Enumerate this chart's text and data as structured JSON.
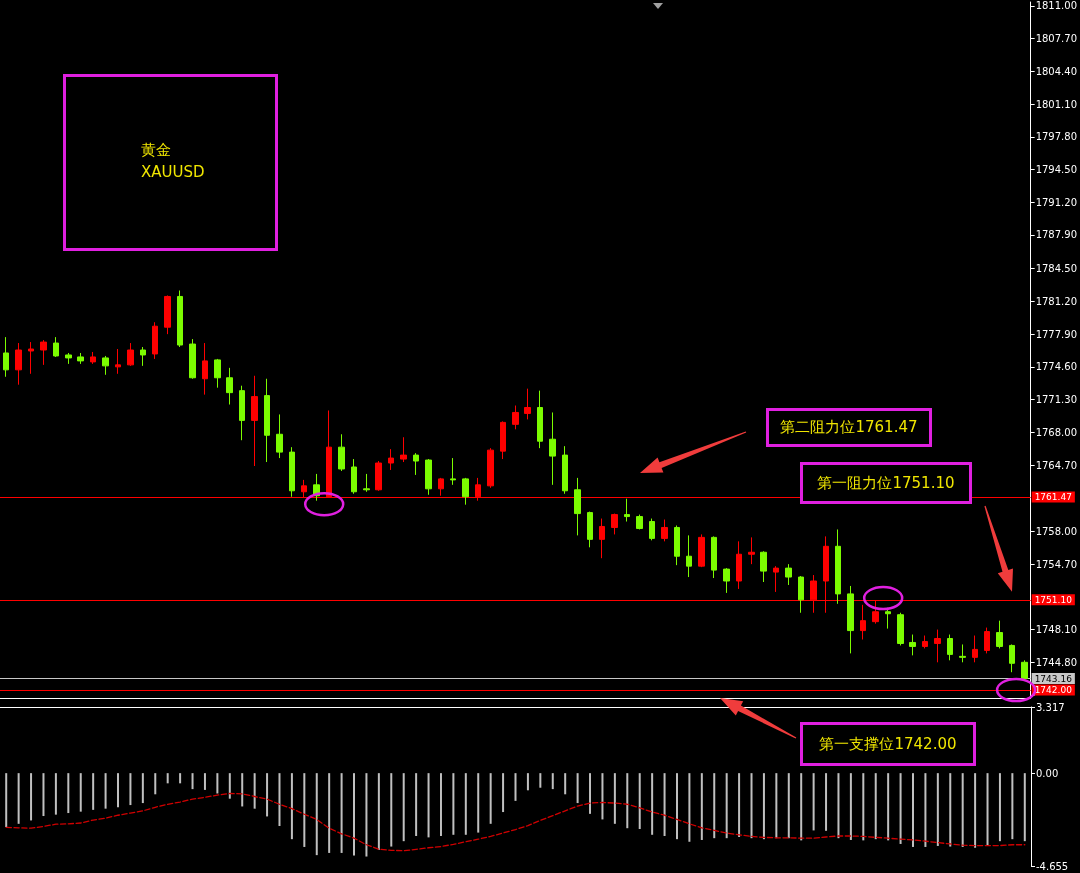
{
  "chart_data": [
    {
      "type": "candlestick",
      "categories": [
        null,
        null,
        null,
        null,
        null,
        null,
        null,
        null,
        null,
        null,
        null,
        null,
        null,
        null,
        null,
        null,
        null,
        null,
        null,
        null,
        null,
        null,
        null,
        null,
        null,
        null,
        null,
        null,
        null,
        null,
        null,
        null,
        null,
        null,
        null,
        null,
        null,
        null,
        null,
        null,
        null,
        null,
        null,
        null,
        null,
        null,
        null,
        null,
        null,
        null,
        null,
        null,
        null,
        null,
        null,
        null,
        null,
        null,
        null,
        null,
        null,
        null,
        null,
        null,
        null,
        null,
        null,
        null,
        null,
        null,
        null,
        null,
        null,
        null,
        null,
        null,
        null,
        null,
        null,
        null,
        null,
        null,
        null
      ],
      "ohlc": [
        [
          1776.0,
          1777.6,
          1773.6,
          1774.3
        ],
        [
          1774.3,
          1777.0,
          1772.8,
          1776.3
        ],
        [
          1776.2,
          1777.1,
          1773.9,
          1776.4
        ],
        [
          1776.3,
          1777.3,
          1774.8,
          1777.1
        ],
        [
          1777.0,
          1777.6,
          1775.6,
          1775.7
        ],
        [
          1775.8,
          1776.0,
          1774.9,
          1775.5
        ],
        [
          1775.6,
          1776.0,
          1774.9,
          1775.2
        ],
        [
          1775.1,
          1776.1,
          1774.9,
          1775.6
        ],
        [
          1775.5,
          1775.7,
          1773.8,
          1774.7
        ],
        [
          1774.6,
          1776.4,
          1773.9,
          1774.8
        ],
        [
          1774.8,
          1777.0,
          1774.7,
          1776.3
        ],
        [
          1776.3,
          1776.6,
          1774.7,
          1775.8
        ],
        [
          1775.9,
          1779.1,
          1775.4,
          1778.7
        ],
        [
          1778.6,
          1781.8,
          1777.9,
          1781.7
        ],
        [
          1781.7,
          1782.3,
          1776.6,
          1776.8
        ],
        [
          1776.9,
          1777.4,
          1773.4,
          1773.5
        ],
        [
          1773.4,
          1777.0,
          1771.8,
          1775.2
        ],
        [
          1775.3,
          1775.4,
          1772.5,
          1773.5
        ],
        [
          1773.5,
          1774.5,
          1770.8,
          1772.0
        ],
        [
          1772.2,
          1772.7,
          1767.2,
          1769.2
        ],
        [
          1769.2,
          1773.7,
          1764.6,
          1771.6
        ],
        [
          1771.7,
          1773.4,
          1765.0,
          1767.7
        ],
        [
          1767.8,
          1769.8,
          1765.4,
          1766.0
        ],
        [
          1766.0,
          1766.5,
          1761.5,
          1762.1
        ],
        [
          1762.0,
          1763.2,
          1761.4,
          1762.6
        ],
        [
          1762.7,
          1763.8,
          1761.1,
          1761.6
        ],
        [
          1761.5,
          1770.2,
          1761.5,
          1766.5
        ],
        [
          1766.5,
          1767.8,
          1764.1,
          1764.3
        ],
        [
          1764.5,
          1765.3,
          1761.8,
          1762.0
        ],
        [
          1762.3,
          1763.8,
          1762.0,
          1762.2
        ],
        [
          1762.2,
          1765.1,
          1762.1,
          1764.9
        ],
        [
          1764.9,
          1766.3,
          1764.2,
          1765.4
        ],
        [
          1765.3,
          1767.5,
          1765.0,
          1765.7
        ],
        [
          1765.7,
          1765.9,
          1763.7,
          1765.1
        ],
        [
          1765.2,
          1765.3,
          1761.7,
          1762.3
        ],
        [
          1762.3,
          1763.4,
          1761.6,
          1763.3
        ],
        [
          1763.3,
          1765.4,
          1762.7,
          1763.2
        ],
        [
          1763.3,
          1763.4,
          1760.7,
          1761.5
        ],
        [
          1761.5,
          1763.4,
          1761.1,
          1762.7
        ],
        [
          1762.6,
          1766.4,
          1762.4,
          1766.2
        ],
        [
          1766.1,
          1769.1,
          1765.3,
          1769.0
        ],
        [
          1768.8,
          1770.7,
          1768.3,
          1770.0
        ],
        [
          1769.9,
          1772.4,
          1769.3,
          1770.5
        ],
        [
          1770.5,
          1772.2,
          1766.4,
          1767.1
        ],
        [
          1767.3,
          1770.0,
          1762.7,
          1765.6
        ],
        [
          1765.7,
          1766.6,
          1761.8,
          1762.1
        ],
        [
          1762.2,
          1763.4,
          1757.6,
          1759.8
        ],
        [
          1759.9,
          1760.0,
          1756.4,
          1757.2
        ],
        [
          1757.2,
          1759.3,
          1755.3,
          1758.5
        ],
        [
          1758.4,
          1759.8,
          1757.7,
          1759.7
        ],
        [
          1759.7,
          1761.3,
          1759.0,
          1759.5
        ],
        [
          1759.5,
          1759.7,
          1758.2,
          1758.3
        ],
        [
          1759.0,
          1759.3,
          1757.1,
          1757.3
        ],
        [
          1757.3,
          1759.2,
          1757.0,
          1758.4
        ],
        [
          1758.4,
          1758.6,
          1754.6,
          1755.5
        ],
        [
          1755.5,
          1757.6,
          1753.4,
          1754.5
        ],
        [
          1754.5,
          1757.7,
          1754.4,
          1757.4
        ],
        [
          1757.4,
          1757.5,
          1753.3,
          1754.1
        ],
        [
          1754.2,
          1754.3,
          1751.8,
          1753.0
        ],
        [
          1753.0,
          1757.0,
          1752.2,
          1755.7
        ],
        [
          1755.7,
          1757.4,
          1754.7,
          1755.9
        ],
        [
          1755.9,
          1756.0,
          1752.9,
          1754.0
        ],
        [
          1753.9,
          1754.5,
          1751.9,
          1754.3
        ],
        [
          1754.3,
          1754.7,
          1752.6,
          1753.4
        ],
        [
          1753.4,
          1753.5,
          1749.8,
          1751.1
        ],
        [
          1751.1,
          1753.6,
          1749.8,
          1753.0
        ],
        [
          1753.0,
          1757.5,
          1749.8,
          1756.5
        ],
        [
          1756.5,
          1758.2,
          1750.7,
          1751.7
        ],
        [
          1751.7,
          1752.5,
          1745.7,
          1748.0
        ],
        [
          1748.0,
          1750.6,
          1747.1,
          1749.0
        ],
        [
          1748.9,
          1751.0,
          1748.7,
          1749.9
        ],
        [
          1749.9,
          1750.3,
          1748.2,
          1749.7
        ],
        [
          1749.6,
          1749.8,
          1746.5,
          1746.7
        ],
        [
          1746.8,
          1747.6,
          1745.5,
          1746.4
        ],
        [
          1746.4,
          1747.5,
          1746.2,
          1746.9
        ],
        [
          1746.7,
          1748.1,
          1744.8,
          1747.2
        ],
        [
          1747.2,
          1747.6,
          1745.0,
          1745.6
        ],
        [
          1745.4,
          1746.6,
          1744.8,
          1745.3
        ],
        [
          1745.3,
          1747.5,
          1744.8,
          1746.1
        ],
        [
          1746.0,
          1748.3,
          1745.7,
          1747.9
        ],
        [
          1747.8,
          1749.0,
          1746.2,
          1746.4
        ],
        [
          1746.5,
          1746.6,
          1743.8,
          1744.7
        ],
        [
          1744.8,
          1745.0,
          1743.1,
          1743.16
        ]
      ],
      "colors": [
        "#7cfc00",
        "#ff0000",
        "#ff0000",
        "#ff0000",
        "#7cfc00",
        "#7cfc00",
        "#7cfc00",
        "#ff0000",
        "#7cfc00",
        "#ff0000",
        "#ff0000",
        "#7cfc00",
        "#ff0000",
        "#ff0000",
        "#7cfc00",
        "#7cfc00",
        "#ff0000",
        "#7cfc00",
        "#7cfc00",
        "#7cfc00",
        "#ff0000",
        "#7cfc00",
        "#7cfc00",
        "#7cfc00",
        "#ff0000",
        "#7cfc00",
        "#ff0000",
        "#7cfc00",
        "#7cfc00",
        "#7cfc00",
        "#ff0000",
        "#ff0000",
        "#ff0000",
        "#7cfc00",
        "#7cfc00",
        "#ff0000",
        "#7cfc00",
        "#7cfc00",
        "#ff0000",
        "#ff0000",
        "#ff0000",
        "#ff0000",
        "#ff0000",
        "#7cfc00",
        "#7cfc00",
        "#7cfc00",
        "#7cfc00",
        "#7cfc00",
        "#ff0000",
        "#ff0000",
        "#7cfc00",
        "#7cfc00",
        "#7cfc00",
        "#ff0000",
        "#7cfc00",
        "#7cfc00",
        "#ff0000",
        "#7cfc00",
        "#7cfc00",
        "#ff0000",
        "#ff0000",
        "#7cfc00",
        "#ff0000",
        "#7cfc00",
        "#7cfc00",
        "#ff0000",
        "#ff0000",
        "#7cfc00",
        "#7cfc00",
        "#ff0000",
        "#ff0000",
        "#7cfc00",
        "#7cfc00",
        "#7cfc00",
        "#ff0000",
        "#ff0000",
        "#7cfc00",
        "#7cfc00",
        "#ff0000",
        "#ff0000",
        "#7cfc00",
        "#7cfc00",
        "#7cfc00"
      ],
      "ylim": [
        1741.2,
        1811.4
      ],
      "yticks": [
        {
          "value": 1811.0,
          "label": "1811.00"
        },
        {
          "value": 1807.7,
          "label": "1807.70"
        },
        {
          "value": 1804.4,
          "label": "1804.40"
        },
        {
          "value": 1801.1,
          "label": "1801.10"
        },
        {
          "value": 1797.8,
          "label": "1797.80"
        },
        {
          "value": 1794.5,
          "label": "1794.50"
        },
        {
          "value": 1791.2,
          "label": "1791.20"
        },
        {
          "value": 1787.9,
          "label": "1787.90"
        },
        {
          "value": 1784.5,
          "label": "1784.50"
        },
        {
          "value": 1781.2,
          "label": "1781.20"
        },
        {
          "value": 1777.9,
          "label": "1777.90"
        },
        {
          "value": 1774.6,
          "label": "1774.60"
        },
        {
          "value": 1771.3,
          "label": "1771.30"
        },
        {
          "value": 1768.0,
          "label": "1768.00"
        },
        {
          "value": 1764.7,
          "label": "1764.70"
        },
        {
          "value": 1758.0,
          "label": "1758.00"
        },
        {
          "value": 1754.7,
          "label": "1754.70"
        },
        {
          "value": 1748.1,
          "label": "1748.10"
        },
        {
          "value": 1744.8,
          "label": "1744.80"
        },
        {
          "value": 1741.5,
          "label": null
        }
      ],
      "ref_lines": [
        {
          "axis": "y",
          "value": 1761.47,
          "label": "1761.47",
          "color": "#ff0000"
        },
        {
          "axis": "y",
          "value": 1751.1,
          "label": "1751.10",
          "color": "#ff0000"
        },
        {
          "axis": "y",
          "value": 1743.16,
          "label": "1743.16",
          "color": "#c8c8c8"
        },
        {
          "axis": "y",
          "value": 1742.0,
          "label": "1742.00",
          "color": "#ff0000"
        }
      ],
      "annotations": [
        "黄金",
        "XAUUSD",
        "第二阻力位1761.47",
        "第一阻力位1751.10",
        "第一支撑位1742.00"
      ],
      "tick_labels": "y"
    },
    {
      "type": "bar",
      "categories": [
        null,
        null,
        null,
        null,
        null,
        null,
        null,
        null,
        null,
        null,
        null,
        null,
        null,
        null,
        null,
        null,
        null,
        null,
        null,
        null,
        null,
        null,
        null,
        null,
        null,
        null,
        null,
        null,
        null,
        null,
        null,
        null,
        null,
        null,
        null,
        null,
        null,
        null,
        null,
        null,
        null,
        null,
        null,
        null,
        null,
        null,
        null,
        null,
        null,
        null,
        null,
        null,
        null,
        null,
        null,
        null,
        null,
        null,
        null,
        null,
        null,
        null,
        null,
        null,
        null,
        null,
        null,
        null,
        null,
        null,
        null,
        null,
        null,
        null,
        null,
        null,
        null,
        null,
        null,
        null,
        null,
        null,
        null
      ],
      "series": [
        {
          "type": "bar",
          "color": "#c0c0c0",
          "values": [
            -2.7,
            -2.54,
            -2.37,
            -2.15,
            -2.08,
            -2.0,
            -1.93,
            -1.84,
            -1.78,
            -1.71,
            -1.6,
            -1.5,
            -1.06,
            -0.51,
            -0.51,
            -0.8,
            -0.84,
            -1.02,
            -1.28,
            -1.67,
            -1.78,
            -2.17,
            -2.65,
            -3.31,
            -3.7,
            -4.11,
            -4.0,
            -4.0,
            -4.13,
            -4.18,
            -3.85,
            -3.68,
            -3.41,
            -3.15,
            -3.22,
            -3.15,
            -3.09,
            -3.09,
            -2.98,
            -2.54,
            -1.95,
            -1.39,
            -0.86,
            -0.73,
            -0.8,
            -1.06,
            -1.5,
            -2.04,
            -2.32,
            -2.54,
            -2.76,
            -2.8,
            -3.09,
            -3.15,
            -3.31,
            -3.44,
            -3.35,
            -3.26,
            -3.26,
            -3.2,
            -3.26,
            -3.31,
            -3.26,
            -3.26,
            -3.37,
            -2.87,
            -2.89,
            -3.26,
            -3.35,
            -3.37,
            -3.31,
            -3.37,
            -3.55,
            -3.7,
            -3.7,
            -3.65,
            -3.68,
            -3.7,
            -3.74,
            -3.65,
            -3.41,
            -3.31,
            -3.41
          ]
        },
        {
          "type": "line",
          "color": "#d00000",
          "line_style": "dashed",
          "values": [
            -2.72,
            -2.74,
            -2.76,
            -2.67,
            -2.56,
            -2.54,
            -2.5,
            -2.35,
            -2.26,
            -2.11,
            -2.0,
            -1.89,
            -1.71,
            -1.56,
            -1.45,
            -1.3,
            -1.21,
            -1.1,
            -1.02,
            -1.04,
            -1.17,
            -1.3,
            -1.56,
            -1.78,
            -2.06,
            -2.32,
            -2.76,
            -3.04,
            -3.26,
            -3.59,
            -3.81,
            -3.87,
            -3.89,
            -3.82,
            -3.74,
            -3.68,
            -3.57,
            -3.44,
            -3.31,
            -3.17,
            -3.0,
            -2.83,
            -2.63,
            -2.37,
            -2.13,
            -1.89,
            -1.65,
            -1.5,
            -1.47,
            -1.5,
            -1.56,
            -1.74,
            -1.95,
            -2.11,
            -2.32,
            -2.54,
            -2.74,
            -2.87,
            -3.0,
            -3.09,
            -3.17,
            -3.22,
            -3.24,
            -3.24,
            -3.26,
            -3.26,
            -3.2,
            -3.15,
            -3.15,
            -3.17,
            -3.22,
            -3.26,
            -3.31,
            -3.35,
            -3.41,
            -3.48,
            -3.55,
            -3.61,
            -3.63,
            -3.63,
            -3.63,
            -3.59,
            -3.59
          ]
        }
      ],
      "ylim": [
        -4.655,
        3.317
      ],
      "yticks": [
        3.317,
        {
          "value": 0,
          "label": "0.00"
        },
        -4.655
      ],
      "marker": "none",
      "tick_labels": "y"
    }
  ]
}
